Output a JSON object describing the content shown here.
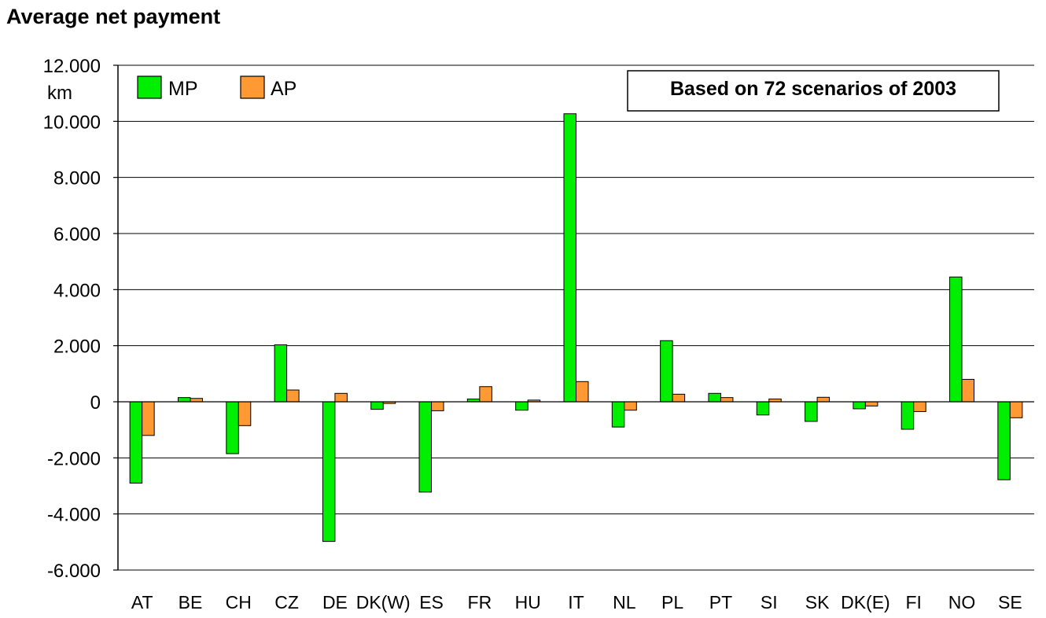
{
  "chart_data": {
    "type": "bar",
    "title": "Average net payment",
    "ylabel": "km",
    "xlabel": "",
    "ylim": [
      -6000,
      12000
    ],
    "yticks": [
      12000,
      10000,
      8000,
      6000,
      4000,
      2000,
      0,
      -2000,
      -4000,
      -6000
    ],
    "ytick_labels": [
      "12.000",
      "10.000",
      "8.000",
      "6.000",
      "4.000",
      "2.000",
      "0",
      "-2.000",
      "-4.000",
      "-6.000"
    ],
    "grid": true,
    "legend_position": "top-left",
    "annotation": "Based on 72 scenarios of 2003",
    "categories": [
      "AT",
      "BE",
      "CH",
      "CZ",
      "DE",
      "DK(W)",
      "ES",
      "FR",
      "HU",
      "IT",
      "NL",
      "PL",
      "PT",
      "SI",
      "SK",
      "DK(E)",
      "FI",
      "NO",
      "SE"
    ],
    "series": [
      {
        "name": "MP",
        "color": "#00ee00",
        "values": [
          -2900,
          150,
          -1850,
          2030,
          -4980,
          -270,
          -3220,
          100,
          -300,
          10270,
          -900,
          2180,
          300,
          -470,
          -700,
          -250,
          -980,
          4450,
          -2780
        ]
      },
      {
        "name": "AP",
        "color": "#ff9933",
        "values": [
          -1200,
          120,
          -850,
          420,
          300,
          -60,
          -320,
          540,
          60,
          720,
          -300,
          270,
          150,
          100,
          160,
          -150,
          -350,
          800,
          -570
        ]
      }
    ]
  }
}
